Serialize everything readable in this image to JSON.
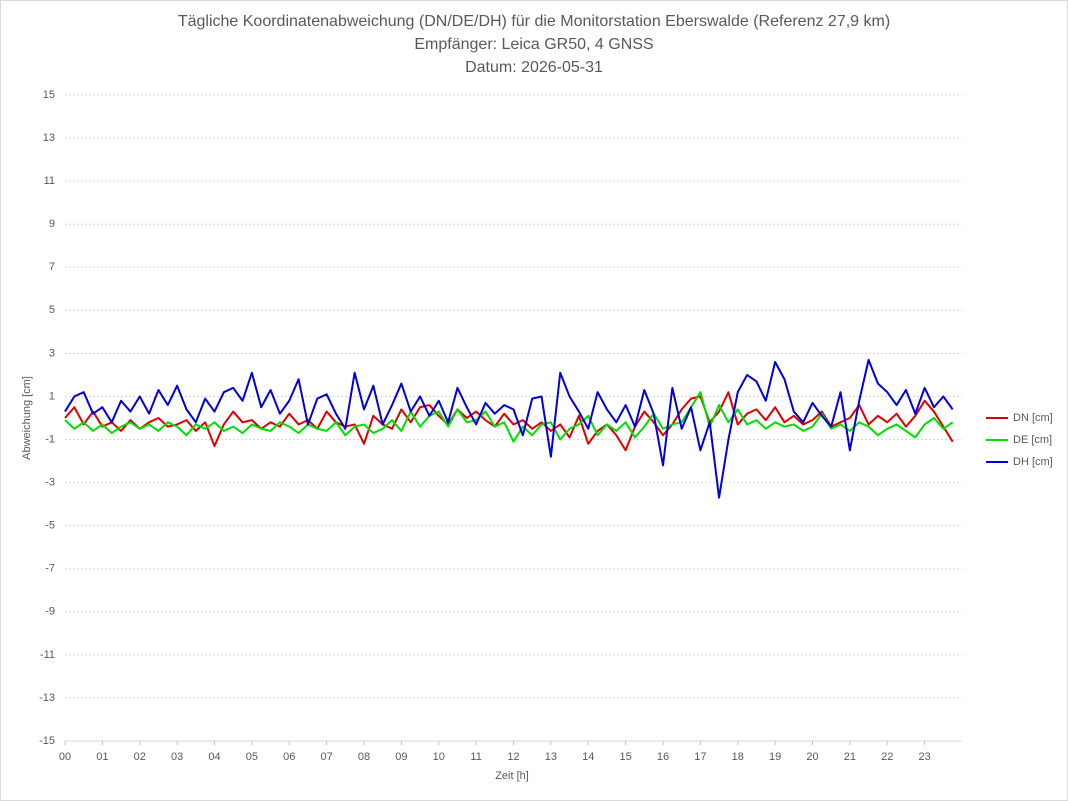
{
  "chart_data": {
    "type": "line",
    "title": "Tägliche Koordinatenabweichung (DN/DE/DH) für die Monitorstation Eberswalde (Referenz 27,9 km)",
    "subtitle": "Empfänger: Leica GR50, 4 GNSS",
    "date_label": "Datum: 2026-05-31",
    "xlabel": "Zeit [h]",
    "ylabel": "Abweichung [cm]",
    "x": [
      0,
      0.25,
      0.5,
      0.75,
      1,
      1.25,
      1.5,
      1.75,
      2,
      2.25,
      2.5,
      2.75,
      3,
      3.25,
      3.5,
      3.75,
      4,
      4.25,
      4.5,
      4.75,
      5,
      5.25,
      5.5,
      5.75,
      6,
      6.25,
      6.5,
      6.75,
      7,
      7.25,
      7.5,
      7.75,
      8,
      8.25,
      8.5,
      8.75,
      9,
      9.25,
      9.5,
      9.75,
      10,
      10.25,
      10.5,
      10.75,
      11,
      11.25,
      11.5,
      11.75,
      12,
      12.25,
      12.5,
      12.75,
      13,
      13.25,
      13.5,
      13.75,
      14,
      14.25,
      14.5,
      14.75,
      15,
      15.25,
      15.5,
      15.75,
      16,
      16.25,
      16.5,
      16.75,
      17,
      17.25,
      17.5,
      17.75,
      18,
      18.25,
      18.5,
      18.75,
      19,
      19.25,
      19.5,
      19.75,
      20,
      20.25,
      20.5,
      20.75,
      21,
      21.25,
      21.5,
      21.75,
      22,
      22.25,
      22.5,
      22.75,
      23,
      23.25,
      23.5,
      23.75
    ],
    "series": [
      {
        "name": "DN [cm]",
        "color": "#e00000",
        "values": [
          0.0,
          0.5,
          -0.3,
          0.3,
          -0.4,
          -0.2,
          -0.6,
          -0.1,
          -0.5,
          -0.2,
          0.0,
          -0.4,
          -0.3,
          -0.1,
          -0.6,
          -0.2,
          -1.3,
          -0.3,
          0.3,
          -0.2,
          -0.1,
          -0.5,
          -0.2,
          -0.4,
          0.2,
          -0.3,
          -0.1,
          -0.5,
          0.3,
          -0.2,
          -0.4,
          -0.3,
          -1.2,
          0.1,
          -0.3,
          -0.5,
          0.4,
          -0.2,
          0.5,
          0.6,
          0.1,
          -0.3,
          0.4,
          0.0,
          0.3,
          -0.1,
          -0.4,
          0.2,
          -0.3,
          -0.1,
          -0.5,
          -0.2,
          -0.6,
          -0.3,
          -0.9,
          0.1,
          -1.2,
          -0.6,
          -0.3,
          -0.8,
          -1.5,
          -0.4,
          0.3,
          -0.2,
          -0.8,
          -0.3,
          0.4,
          0.9,
          1.0,
          -0.2,
          0.3,
          1.2,
          -0.3,
          0.2,
          0.4,
          -0.1,
          0.5,
          -0.2,
          0.1,
          -0.3,
          -0.1,
          0.3,
          -0.4,
          -0.2,
          0.0,
          0.6,
          -0.3,
          0.1,
          -0.2,
          0.2,
          -0.4,
          0.1,
          0.8,
          0.3,
          -0.4,
          -1.1
        ]
      },
      {
        "name": "DE [cm]",
        "color": "#00e000",
        "values": [
          -0.1,
          -0.5,
          -0.2,
          -0.6,
          -0.3,
          -0.7,
          -0.4,
          -0.2,
          -0.5,
          -0.3,
          -0.6,
          -0.2,
          -0.4,
          -0.8,
          -0.3,
          -0.5,
          -0.2,
          -0.6,
          -0.4,
          -0.7,
          -0.3,
          -0.5,
          -0.6,
          -0.2,
          -0.4,
          -0.7,
          -0.3,
          -0.5,
          -0.6,
          -0.2,
          -0.8,
          -0.4,
          -0.3,
          -0.7,
          -0.5,
          -0.1,
          -0.6,
          0.3,
          -0.4,
          0.1,
          0.3,
          -0.4,
          0.4,
          -0.2,
          -0.1,
          0.3,
          -0.4,
          -0.2,
          -1.1,
          -0.4,
          -0.8,
          -0.3,
          -0.2,
          -1.0,
          -0.5,
          -0.3,
          0.1,
          -0.8,
          -0.3,
          -0.6,
          -0.2,
          -0.9,
          -0.4,
          0.2,
          -0.5,
          -0.3,
          -0.2,
          0.5,
          1.2,
          -0.4,
          0.6,
          -0.2,
          0.4,
          -0.3,
          -0.1,
          -0.5,
          -0.2,
          -0.4,
          -0.3,
          -0.6,
          -0.4,
          0.2,
          -0.5,
          -0.3,
          -0.6,
          -0.2,
          -0.4,
          -0.8,
          -0.5,
          -0.3,
          -0.6,
          -0.9,
          -0.3,
          0.0,
          -0.5,
          -0.2
        ]
      },
      {
        "name": "DH [cm]",
        "color": "#0000e0",
        "values": [
          0.3,
          1.0,
          1.2,
          0.2,
          0.5,
          -0.2,
          0.8,
          0.3,
          1.0,
          0.2,
          1.3,
          0.6,
          1.5,
          0.4,
          -0.2,
          0.9,
          0.3,
          1.2,
          1.4,
          0.8,
          2.1,
          0.5,
          1.3,
          0.2,
          0.8,
          1.8,
          -0.3,
          0.9,
          1.1,
          0.2,
          -0.5,
          2.1,
          0.4,
          1.5,
          -0.3,
          0.6,
          1.6,
          0.3,
          1.0,
          0.1,
          0.8,
          -0.2,
          1.4,
          0.5,
          -0.3,
          0.7,
          0.2,
          0.6,
          0.4,
          -0.8,
          0.9,
          1.0,
          -1.8,
          2.1,
          1.0,
          0.3,
          -0.5,
          1.2,
          0.4,
          -0.2,
          0.6,
          -0.4,
          1.3,
          0.2,
          -2.2,
          1.4,
          -0.5,
          0.5,
          -1.5,
          -0.2,
          -3.7,
          -1.0,
          1.2,
          2.0,
          1.7,
          0.8,
          2.6,
          1.8,
          0.3,
          -0.2,
          0.7,
          0.1,
          -0.4,
          1.2,
          -1.5,
          0.8,
          2.7,
          1.6,
          1.2,
          0.6,
          1.3,
          0.2,
          1.4,
          0.5,
          1.0,
          0.4
        ]
      }
    ],
    "xlim": [
      0,
      24
    ],
    "ylim": [
      -15,
      15
    ],
    "xticks": [
      {
        "value": 0,
        "label": "00"
      },
      {
        "value": 1,
        "label": "01"
      },
      {
        "value": 2,
        "label": "02"
      },
      {
        "value": 3,
        "label": "03"
      },
      {
        "value": 4,
        "label": "04"
      },
      {
        "value": 5,
        "label": "05"
      },
      {
        "value": 6,
        "label": "06"
      },
      {
        "value": 7,
        "label": "07"
      },
      {
        "value": 8,
        "label": "08"
      },
      {
        "value": 9,
        "label": "09"
      },
      {
        "value": 10,
        "label": "10"
      },
      {
        "value": 11,
        "label": "11"
      },
      {
        "value": 12,
        "label": "12"
      },
      {
        "value": 13,
        "label": "13"
      },
      {
        "value": 14,
        "label": "14"
      },
      {
        "value": 15,
        "label": "15"
      },
      {
        "value": 16,
        "label": "16"
      },
      {
        "value": 17,
        "label": "17"
      },
      {
        "value": 18,
        "label": "18"
      },
      {
        "value": 19,
        "label": "19"
      },
      {
        "value": 20,
        "label": "20"
      },
      {
        "value": 21,
        "label": "21"
      },
      {
        "value": 22,
        "label": "22"
      },
      {
        "value": 23,
        "label": "23"
      }
    ],
    "yticks": [
      15,
      13,
      11,
      9,
      7,
      5,
      3,
      1,
      -1,
      -3,
      -5,
      -7,
      -9,
      -11,
      -13,
      -15
    ],
    "grid": true,
    "legend": "right"
  }
}
